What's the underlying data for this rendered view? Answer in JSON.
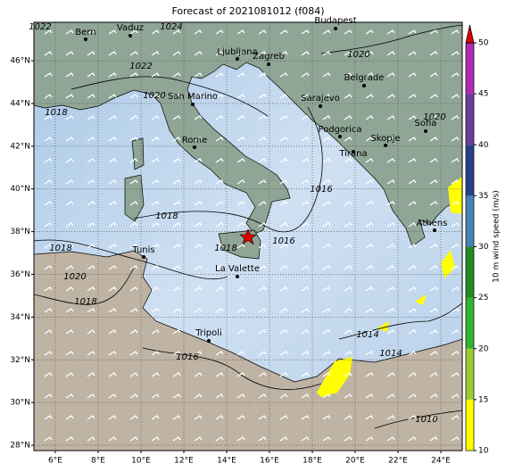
{
  "title": "Forecast of 2021081012 (f084)",
  "map": {
    "xlim": [
      5,
      25
    ],
    "ylim": [
      27.75,
      47.8
    ],
    "lon_ticks": [
      {
        "value": 6,
        "label": "6°E"
      },
      {
        "value": 8,
        "label": "8°E"
      },
      {
        "value": 10,
        "label": "10°E"
      },
      {
        "value": 12,
        "label": "12°E"
      },
      {
        "value": 14,
        "label": "14°E"
      },
      {
        "value": 16,
        "label": "16°E"
      },
      {
        "value": 18,
        "label": "18°E"
      },
      {
        "value": 20,
        "label": "20°E"
      },
      {
        "value": 22,
        "label": "22°E"
      },
      {
        "value": 24,
        "label": "24°E"
      }
    ],
    "lat_ticks": [
      {
        "value": 28,
        "label": "28°N"
      },
      {
        "value": 30,
        "label": "30°N"
      },
      {
        "value": 32,
        "label": "32°N"
      },
      {
        "value": 34,
        "label": "34°N"
      },
      {
        "value": 36,
        "label": "36°N"
      },
      {
        "value": 38,
        "label": "38°N"
      },
      {
        "value": 40,
        "label": "40°N"
      },
      {
        "value": 42,
        "label": "42°N"
      },
      {
        "value": 44,
        "label": "44°N"
      },
      {
        "value": 46,
        "label": "46°N"
      }
    ],
    "cities": [
      "Bern",
      "Vaduz",
      "Budapest",
      "Ljubljana",
      "Zagreb",
      "San Marino",
      "Belgrade",
      "Sarajevo",
      "Rome",
      "Podgorica",
      "Sofia",
      "Skopje",
      "Tirana",
      "Athens",
      "Tunis",
      "La Valette",
      "Tripoli"
    ],
    "isobar_labels": [
      "1022",
      "1024",
      "1020",
      "1022",
      "1020",
      "1018",
      "1020",
      "1016",
      "1018",
      "1016",
      "1018",
      "1014",
      "1014",
      "1016",
      "1010",
      "1018",
      "1020",
      "1018"
    ]
  },
  "colorbar": {
    "label": "10 m wind speed (m/s)",
    "lim": [
      10,
      50
    ],
    "ticks": [
      10,
      15,
      20,
      25,
      30,
      35,
      40,
      45,
      50
    ],
    "colors": [
      "#ffff00",
      "#9acd32",
      "#32b432",
      "#228b22",
      "#4682b4",
      "#27408b",
      "#6a3d9a",
      "#b22ab2"
    ],
    "extend_color": "#e00000"
  }
}
